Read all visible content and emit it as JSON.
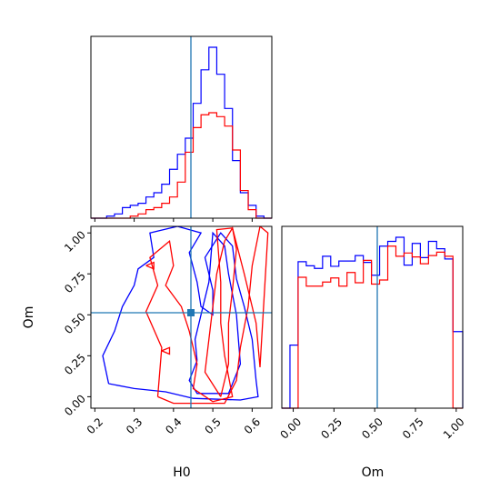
{
  "chart_data": {
    "type": "corner",
    "parameters": [
      "H0",
      "Om"
    ],
    "truth": {
      "H0": 0.45,
      "Om": 0.51,
      "color": "#1f77b4"
    },
    "series_colors": {
      "blue": "#0000ff",
      "red": "#ff0000"
    },
    "axes": {
      "H0": {
        "label": "H0",
        "range": [
          0.19,
          0.65
        ],
        "ticks": [
          0.2,
          0.3,
          0.4,
          0.5,
          0.6
        ],
        "tick_labels": [
          "0.2",
          "0.3",
          "0.4",
          "0.5",
          "0.6"
        ]
      },
      "Om": {
        "label": "Om",
        "range": [
          -0.07,
          1.04
        ],
        "ticks": [
          0.0,
          0.25,
          0.5,
          0.75,
          1.0
        ],
        "tick_labels": [
          "0.00",
          "0.25",
          "0.50",
          "0.75",
          "1.00"
        ]
      }
    },
    "hist_H0": {
      "bin_edges": [
        0.19,
        0.21,
        0.23,
        0.25,
        0.27,
        0.29,
        0.31,
        0.33,
        0.35,
        0.37,
        0.39,
        0.41,
        0.43,
        0.45,
        0.47,
        0.49,
        0.51,
        0.53,
        0.55,
        0.57,
        0.59,
        0.61,
        0.63,
        0.65
      ],
      "ylim": [
        0,
        1.0
      ],
      "series": [
        {
          "name": "blue",
          "color": "#0000ff",
          "values": [
            0.0,
            0.0,
            0.012,
            0.025,
            0.062,
            0.075,
            0.087,
            0.124,
            0.149,
            0.199,
            0.286,
            0.374,
            0.468,
            0.672,
            0.868,
            1.0,
            0.842,
            0.642,
            0.337,
            0.149,
            0.075,
            0.012,
            0.0
          ]
        },
        {
          "name": "red",
          "color": "#ff0000",
          "values": [
            0.0,
            0.0,
            0.0,
            0.0,
            0.0,
            0.012,
            0.025,
            0.05,
            0.062,
            0.087,
            0.124,
            0.211,
            0.386,
            0.53,
            0.605,
            0.617,
            0.594,
            0.539,
            0.399,
            0.162,
            0.05,
            0.0,
            0.0
          ]
        }
      ]
    },
    "hist_Om": {
      "bin_edges": [
        -0.07,
        -0.02,
        0.03,
        0.08,
        0.13,
        0.18,
        0.23,
        0.28,
        0.33,
        0.38,
        0.43,
        0.48,
        0.53,
        0.58,
        0.63,
        0.68,
        0.73,
        0.78,
        0.83,
        0.88,
        0.93,
        0.98,
        1.04
      ],
      "ylim": [
        0,
        1.0
      ],
      "series": [
        {
          "name": "blue",
          "color": "#0000ff",
          "values": [
            0.0,
            0.369,
            0.857,
            0.833,
            0.818,
            0.889,
            0.83,
            0.861,
            0.861,
            0.893,
            0.853,
            0.778,
            0.948,
            0.976,
            1.0,
            0.837,
            0.964,
            0.881,
            0.976,
            0.933,
            0.873,
            0.448
          ]
        },
        {
          "name": "red",
          "color": "#ff0000",
          "values": [
            0.0,
            0.0,
            0.766,
            0.714,
            0.714,
            0.738,
            0.762,
            0.714,
            0.794,
            0.734,
            0.865,
            0.726,
            0.75,
            0.948,
            0.889,
            0.908,
            0.885,
            0.845,
            0.893,
            0.913,
            0.889,
            0.0
          ]
        }
      ]
    },
    "contours": [
      {
        "series": "blue",
        "level": "outer",
        "points": [
          [
            0.235,
            0.08
          ],
          [
            0.22,
            0.25
          ],
          [
            0.25,
            0.4
          ],
          [
            0.27,
            0.55
          ],
          [
            0.3,
            0.68
          ],
          [
            0.31,
            0.78
          ],
          [
            0.35,
            0.85
          ],
          [
            0.34,
            1.0
          ],
          [
            0.41,
            1.04
          ],
          [
            0.47,
            1.0
          ],
          [
            0.44,
            0.88
          ],
          [
            0.46,
            0.7
          ],
          [
            0.47,
            0.55
          ],
          [
            0.5,
            0.5
          ],
          [
            0.5,
            0.65
          ],
          [
            0.48,
            0.85
          ],
          [
            0.52,
            1.0
          ],
          [
            0.55,
            0.92
          ],
          [
            0.56,
            0.72
          ],
          [
            0.58,
            0.55
          ],
          [
            0.6,
            0.35
          ],
          [
            0.61,
            0.1
          ],
          [
            0.615,
            0.0
          ],
          [
            0.57,
            -0.02
          ],
          [
            0.45,
            -0.01
          ],
          [
            0.38,
            0.03
          ],
          [
            0.3,
            0.05
          ],
          [
            0.235,
            0.08
          ]
        ]
      },
      {
        "series": "blue",
        "level": "inner",
        "points": [
          [
            0.46,
            0.22
          ],
          [
            0.44,
            0.1
          ],
          [
            0.46,
            0.02
          ],
          [
            0.54,
            0.02
          ],
          [
            0.57,
            0.2
          ],
          [
            0.56,
            0.5
          ],
          [
            0.54,
            0.75
          ],
          [
            0.53,
            0.92
          ],
          [
            0.5,
            1.0
          ],
          [
            0.49,
            0.7
          ],
          [
            0.47,
            0.5
          ],
          [
            0.455,
            0.35
          ],
          [
            0.46,
            0.22
          ]
        ]
      },
      {
        "series": "red",
        "level": "outer",
        "points": [
          [
            0.36,
            0.0
          ],
          [
            0.37,
            0.3
          ],
          [
            0.33,
            0.52
          ],
          [
            0.36,
            0.68
          ],
          [
            0.34,
            0.85
          ],
          [
            0.39,
            0.95
          ],
          [
            0.4,
            0.8
          ],
          [
            0.38,
            0.68
          ],
          [
            0.42,
            0.55
          ],
          [
            0.44,
            0.4
          ],
          [
            0.46,
            0.2
          ],
          [
            0.45,
            0.05
          ],
          [
            0.5,
            -0.03
          ],
          [
            0.55,
            0.0
          ],
          [
            0.53,
            0.25
          ],
          [
            0.52,
            0.45
          ],
          [
            0.52,
            0.7
          ],
          [
            0.51,
            1.02
          ],
          [
            0.55,
            1.03
          ],
          [
            0.58,
            0.75
          ],
          [
            0.61,
            0.45
          ],
          [
            0.62,
            0.18
          ],
          [
            0.64,
            1.0
          ],
          [
            0.62,
            1.04
          ],
          [
            0.6,
            0.8
          ],
          [
            0.59,
            0.55
          ],
          [
            0.57,
            0.3
          ],
          [
            0.56,
            0.1
          ],
          [
            0.53,
            -0.04
          ],
          [
            0.4,
            -0.04
          ],
          [
            0.36,
            0.0
          ]
        ]
      },
      {
        "series": "red",
        "level": "inner",
        "points": [
          [
            0.52,
            0.0
          ],
          [
            0.48,
            0.15
          ],
          [
            0.49,
            0.35
          ],
          [
            0.5,
            0.55
          ],
          [
            0.51,
            0.75
          ],
          [
            0.53,
            0.95
          ],
          [
            0.55,
            1.03
          ],
          [
            0.56,
            0.9
          ],
          [
            0.55,
            0.65
          ],
          [
            0.54,
            0.45
          ],
          [
            0.54,
            0.2
          ],
          [
            0.52,
            0.0
          ]
        ]
      },
      {
        "series": "red",
        "level": "island",
        "points": [
          [
            0.33,
            0.8
          ],
          [
            0.35,
            0.82
          ],
          [
            0.35,
            0.78
          ],
          [
            0.33,
            0.8
          ]
        ]
      },
      {
        "series": "red",
        "level": "island",
        "points": [
          [
            0.37,
            0.28
          ],
          [
            0.39,
            0.3
          ],
          [
            0.39,
            0.26
          ],
          [
            0.37,
            0.28
          ]
        ]
      }
    ]
  }
}
